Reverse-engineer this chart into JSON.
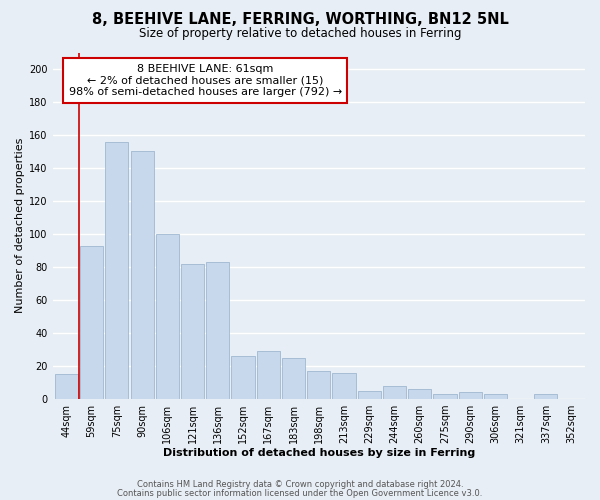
{
  "title": "8, BEEHIVE LANE, FERRING, WORTHING, BN12 5NL",
  "subtitle": "Size of property relative to detached houses in Ferring",
  "xlabel": "Distribution of detached houses by size in Ferring",
  "ylabel": "Number of detached properties",
  "bar_color": "#c8d8ec",
  "bar_edge_color": "#a0b8d0",
  "categories": [
    "44sqm",
    "59sqm",
    "75sqm",
    "90sqm",
    "106sqm",
    "121sqm",
    "136sqm",
    "152sqm",
    "167sqm",
    "183sqm",
    "198sqm",
    "213sqm",
    "229sqm",
    "244sqm",
    "260sqm",
    "275sqm",
    "290sqm",
    "306sqm",
    "321sqm",
    "337sqm",
    "352sqm"
  ],
  "values": [
    15,
    93,
    156,
    150,
    100,
    82,
    83,
    26,
    29,
    25,
    17,
    16,
    5,
    8,
    6,
    3,
    4,
    3,
    0,
    3,
    0
  ],
  "ylim": [
    0,
    210
  ],
  "yticks": [
    0,
    20,
    40,
    60,
    80,
    100,
    120,
    140,
    160,
    180,
    200
  ],
  "vline_color": "#cc0000",
  "annotation_box_text": "8 BEEHIVE LANE: 61sqm\n← 2% of detached houses are smaller (15)\n98% of semi-detached houses are larger (792) →",
  "footer_line1": "Contains HM Land Registry data © Crown copyright and database right 2024.",
  "footer_line2": "Contains public sector information licensed under the Open Government Licence v3.0.",
  "background_color": "#e8eef5",
  "plot_bg_color": "#e8eef5",
  "grid_color": "#ffffff",
  "title_fontsize": 10.5,
  "subtitle_fontsize": 8.5,
  "axis_label_fontsize": 8,
  "tick_fontsize": 7,
  "footer_fontsize": 6,
  "ann_fontsize": 8
}
